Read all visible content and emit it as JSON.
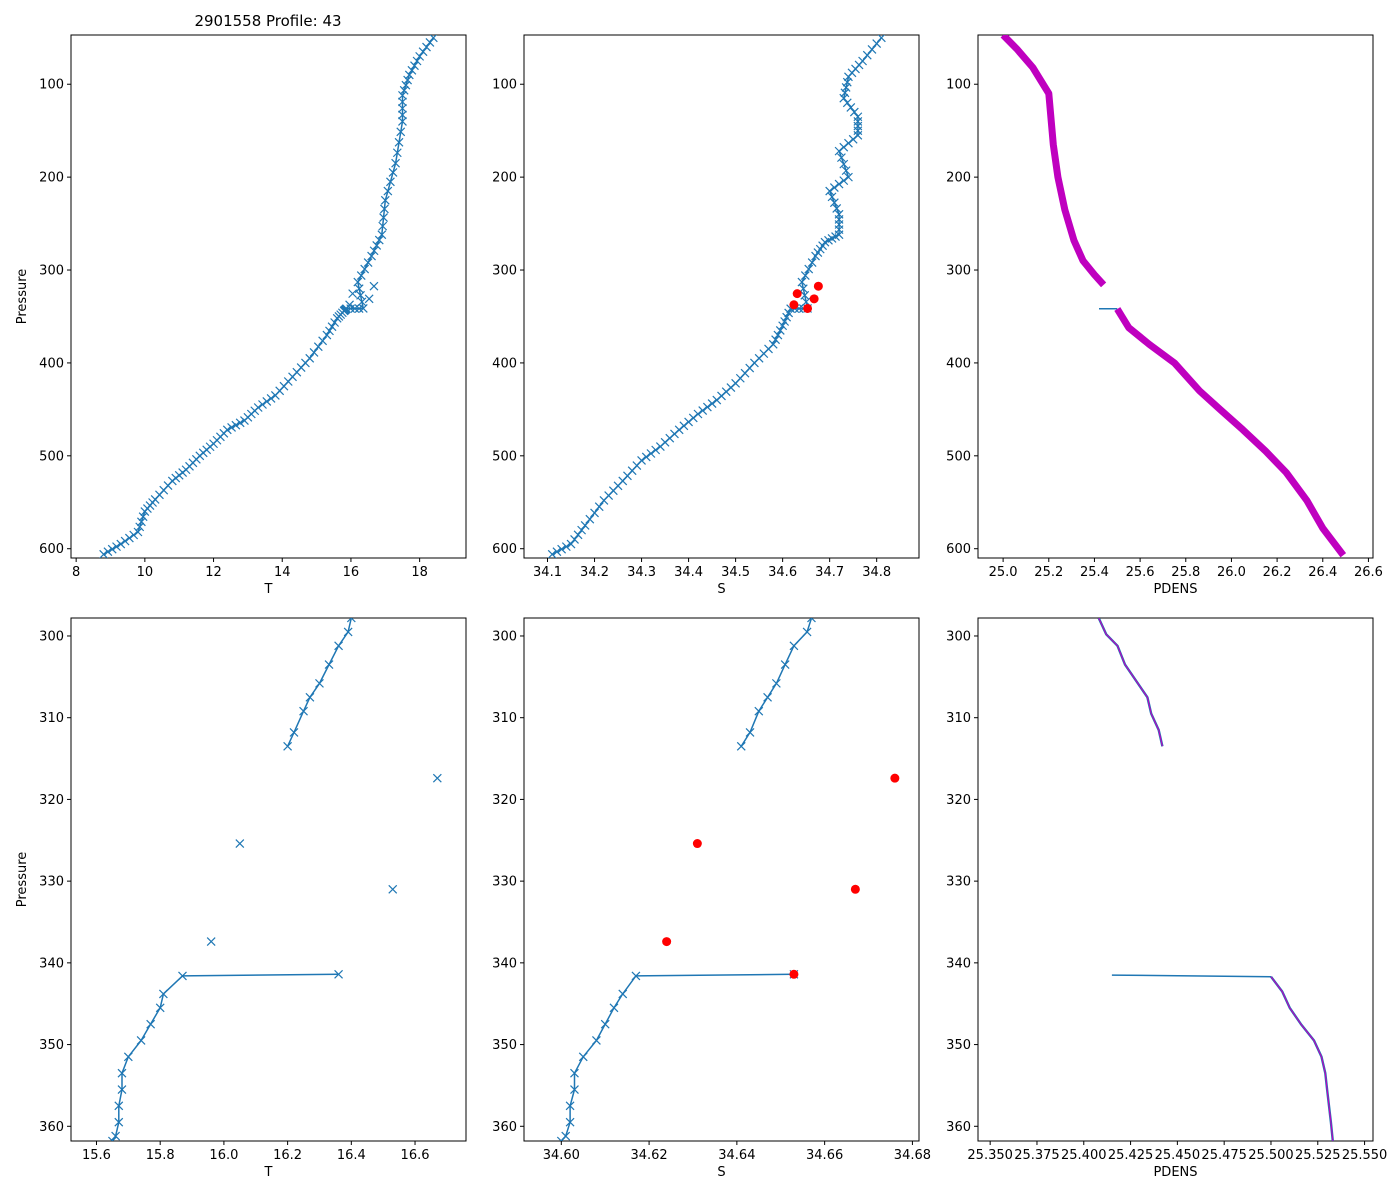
{
  "figure": {
    "title": "2901558 Profile: 43"
  },
  "colors": {
    "line": "#1f77b4",
    "flag": "#ff0000",
    "density": "#bf00bf",
    "axis": "#000000"
  },
  "chart_data": [
    {
      "id": "temp-full",
      "type": "line",
      "xlabel": "T",
      "ylabel": "Pressure",
      "xlim": [
        7.85,
        19.35
      ],
      "ylim": [
        610,
        47
      ],
      "y_inverted": true,
      "xticks": [
        8,
        10,
        12,
        14,
        16,
        18
      ],
      "yticks": [
        100,
        200,
        300,
        400,
        500,
        600
      ],
      "marker": "x",
      "x": [
        8.8,
        9.3,
        9.8,
        10.0,
        10.3,
        10.8,
        11.2,
        11.6,
        12.0,
        12.4,
        12.9,
        13.3,
        13.8,
        14.3,
        14.8,
        15.3,
        15.6,
        15.8,
        15.87,
        16.36,
        16.2,
        16.6,
        16.9,
        17.0,
        17.3,
        17.5,
        17.5,
        17.7,
        18.0,
        18.4
      ],
      "y": [
        606,
        595,
        582,
        560,
        547,
        527,
        515,
        500,
        487,
        472,
        462,
        448,
        435,
        415,
        395,
        370,
        352,
        344,
        341.6,
        341.4,
        313,
        285,
        262,
        225,
        185,
        140,
        112,
        90,
        70,
        50
      ],
      "outliers": [
        {
          "x": 16.05,
          "y": 325.4
        },
        {
          "x": 15.96,
          "y": 337.4
        },
        {
          "x": 16.53,
          "y": 331.0
        },
        {
          "x": 16.67,
          "y": 317.4
        }
      ]
    },
    {
      "id": "sal-full",
      "type": "line",
      "xlabel": "S",
      "ylabel": "",
      "xlim": [
        34.05,
        34.89
      ],
      "ylim": [
        610,
        47
      ],
      "y_inverted": true,
      "xticks": [
        34.1,
        34.2,
        34.3,
        34.4,
        34.5,
        34.6,
        34.7,
        34.8
      ],
      "yticks": [
        100,
        200,
        300,
        400,
        500,
        600
      ],
      "marker": "x",
      "x": [
        34.11,
        34.15,
        34.18,
        34.22,
        34.26,
        34.3,
        34.34,
        34.38,
        34.42,
        34.46,
        34.5,
        34.54,
        34.58,
        34.6,
        34.617,
        34.653,
        34.641,
        34.67,
        34.69,
        34.72,
        34.72,
        34.7,
        34.74,
        34.72,
        34.76,
        34.76,
        34.73,
        34.74,
        34.77,
        34.81
      ],
      "y": [
        606,
        595,
        575,
        548,
        527,
        505,
        490,
        472,
        455,
        440,
        422,
        400,
        380,
        360,
        341.6,
        341.4,
        313,
        285,
        270,
        262,
        240,
        215,
        200,
        172,
        155,
        135,
        115,
        92,
        75,
        50
      ],
      "flags": [
        {
          "x": 34.631,
          "y": 325.4
        },
        {
          "x": 34.624,
          "y": 337.4
        },
        {
          "x": 34.667,
          "y": 331.0
        },
        {
          "x": 34.676,
          "y": 317.4
        },
        {
          "x": 34.653,
          "y": 341.4
        }
      ]
    },
    {
      "id": "dens-full",
      "type": "line",
      "xlabel": "PDENS",
      "ylabel": "",
      "xlim": [
        24.89,
        26.62
      ],
      "ylim": [
        610,
        47
      ],
      "y_inverted": true,
      "xticks": [
        25.0,
        25.2,
        25.4,
        25.6,
        25.8,
        26.0,
        26.2,
        26.4,
        26.6
      ],
      "yticks": [
        100,
        200,
        300,
        400,
        500,
        600
      ],
      "marker": "thick",
      "upper": {
        "x": [
          25.0,
          25.06,
          25.13,
          25.2,
          25.22,
          25.24,
          25.27,
          25.31,
          25.35,
          25.4,
          25.44
        ],
        "y": [
          47,
          62,
          82,
          110,
          165,
          200,
          235,
          268,
          290,
          305,
          316
        ]
      },
      "gap": {
        "x": [
          25.42,
          25.5
        ],
        "y": [
          341.6,
          341.6
        ]
      },
      "lower": {
        "x": [
          25.5,
          25.55,
          25.64,
          25.75,
          25.86,
          25.95,
          26.05,
          26.15,
          26.24,
          26.33,
          26.4,
          26.49
        ],
        "y": [
          342,
          362,
          380,
          400,
          430,
          450,
          472,
          495,
          518,
          548,
          578,
          607
        ]
      }
    },
    {
      "id": "temp-zoom",
      "type": "line",
      "xlabel": "T",
      "ylabel": "Pressure",
      "xlim": [
        15.52,
        16.76
      ],
      "ylim": [
        361.8,
        297.8
      ],
      "y_inverted": true,
      "xticks": [
        15.6,
        15.8,
        16.0,
        16.2,
        16.4,
        16.6
      ],
      "yticks": [
        300,
        310,
        320,
        330,
        340,
        350,
        360
      ],
      "marker": "x",
      "segment1": {
        "x": [
          16.4,
          16.39,
          16.36,
          16.33,
          16.3,
          16.27,
          16.25,
          16.22,
          16.2
        ],
        "y": [
          297.8,
          299.5,
          301.2,
          303.5,
          305.8,
          307.5,
          309.2,
          311.8,
          313.5
        ]
      },
      "segment2": {
        "x": [
          16.36,
          15.87,
          15.81,
          15.8,
          15.77,
          15.74,
          15.7,
          15.68,
          15.68,
          15.67,
          15.67,
          15.66,
          15.65
        ],
        "y": [
          341.4,
          341.6,
          343.8,
          345.5,
          347.5,
          349.5,
          351.5,
          353.5,
          355.5,
          357.5,
          359.5,
          361.2,
          361.8
        ]
      },
      "outliers": [
        {
          "x": 16.67,
          "y": 317.4
        },
        {
          "x": 16.05,
          "y": 325.4
        },
        {
          "x": 16.53,
          "y": 331.0
        },
        {
          "x": 15.96,
          "y": 337.4
        }
      ]
    },
    {
      "id": "sal-zoom",
      "type": "line",
      "xlabel": "S",
      "ylabel": "",
      "xlim": [
        34.5915,
        34.6815
      ],
      "ylim": [
        361.8,
        297.8
      ],
      "y_inverted": true,
      "xticks": [
        34.6,
        34.62,
        34.64,
        34.66,
        34.68
      ],
      "yticks": [
        300,
        310,
        320,
        330,
        340,
        350,
        360
      ],
      "marker": "x",
      "segment1": {
        "x": [
          34.657,
          34.656,
          34.653,
          34.651,
          34.649,
          34.647,
          34.645,
          34.643,
          34.641
        ],
        "y": [
          297.8,
          299.5,
          301.2,
          303.5,
          305.8,
          307.5,
          309.2,
          311.8,
          313.5
        ]
      },
      "segment2": {
        "x": [
          34.653,
          34.617,
          34.614,
          34.612,
          34.61,
          34.608,
          34.605,
          34.603,
          34.603,
          34.602,
          34.602,
          34.601,
          34.6
        ],
        "y": [
          341.4,
          341.6,
          343.8,
          345.5,
          347.5,
          349.5,
          351.5,
          353.5,
          355.5,
          357.5,
          359.5,
          361.2,
          361.8
        ]
      },
      "flags": [
        {
          "x": 34.676,
          "y": 317.4
        },
        {
          "x": 34.631,
          "y": 325.4
        },
        {
          "x": 34.667,
          "y": 331.0
        },
        {
          "x": 34.624,
          "y": 337.4
        },
        {
          "x": 34.653,
          "y": 341.4
        }
      ]
    },
    {
      "id": "dens-zoom",
      "type": "line",
      "xlabel": "PDENS",
      "ylabel": "",
      "xlim": [
        25.3435,
        25.5545
      ],
      "ylim": [
        361.8,
        297.8
      ],
      "y_inverted": true,
      "xticks": [
        25.35,
        25.375,
        25.4,
        25.425,
        25.45,
        25.475,
        25.5,
        25.525,
        25.55
      ],
      "yticks": [
        300,
        310,
        320,
        330,
        340,
        350,
        360
      ],
      "marker": "thick",
      "upper": {
        "x": [
          25.408,
          25.412,
          25.418,
          25.422,
          25.428,
          25.434,
          25.436,
          25.44,
          25.442
        ],
        "y": [
          297.8,
          299.8,
          301.2,
          303.5,
          305.5,
          307.5,
          309.5,
          311.5,
          313.5
        ]
      },
      "gap": {
        "x": [
          25.415,
          25.5
        ],
        "y": [
          341.5,
          341.7
        ]
      },
      "lower": {
        "x": [
          25.5,
          25.506,
          25.51,
          25.516,
          25.523,
          25.527,
          25.529,
          25.53,
          25.531,
          25.532,
          25.533
        ],
        "y": [
          341.7,
          343.5,
          345.5,
          347.5,
          349.5,
          351.5,
          353.5,
          355.5,
          357.5,
          359.5,
          361.8
        ]
      }
    }
  ]
}
